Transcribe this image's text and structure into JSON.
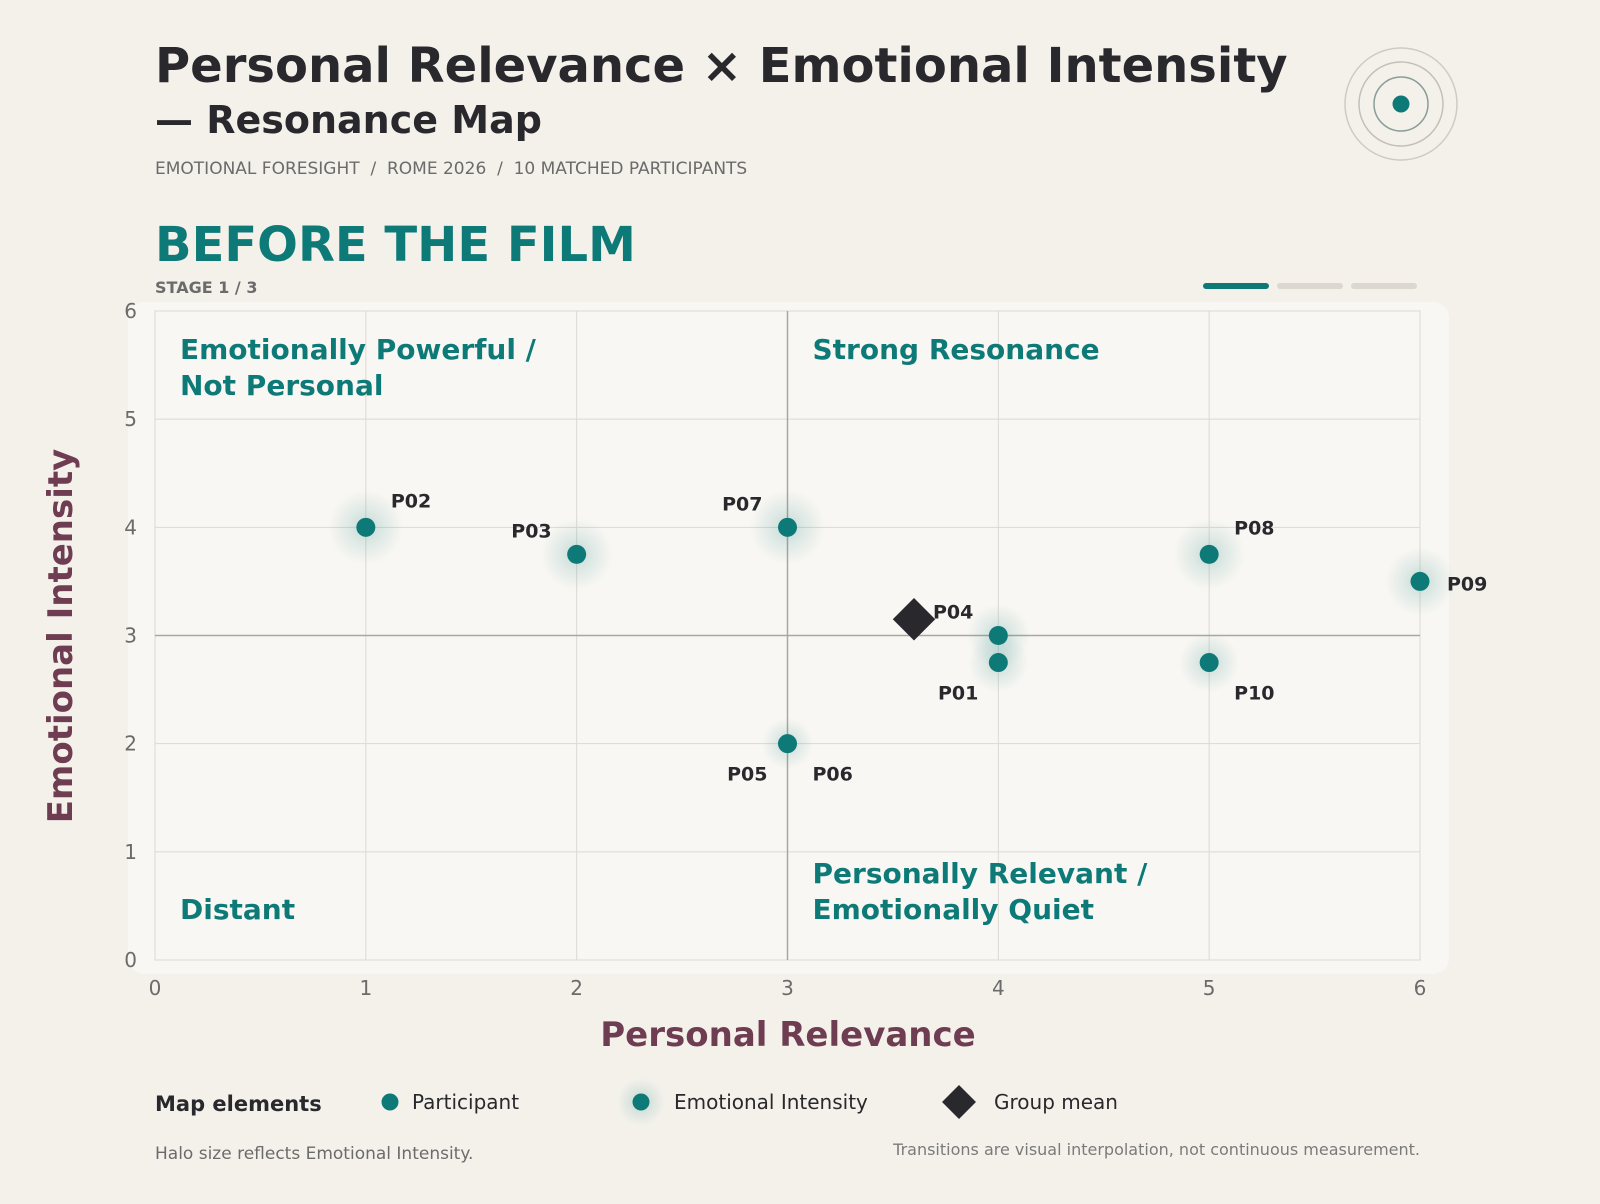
{
  "header": {
    "title_line1": "Personal Relevance × Emotional Intensity",
    "title_line2": "— Resonance Map",
    "subtitle": "EMOTIONAL FORESIGHT  /  ROME 2026  /  10 MATCHED PARTICIPANTS",
    "stage_title": "BEFORE THE FILM",
    "stage_label": "STAGE 1 / 3",
    "stage_current": 1,
    "stage_total": 3
  },
  "colors": {
    "teal": "#0e7a78",
    "axis_label": "#6e3d52",
    "ink": "#29282d",
    "muted": "#6b6b6b",
    "plot_bg": "#f9f7f3",
    "page_bg": "#f4f1eb",
    "inactive_stage": "#dcd7cf"
  },
  "chart_data": {
    "type": "scatter",
    "xlabel": "Personal Relevance",
    "ylabel": "Emotional Intensity",
    "xlim": [
      0,
      6
    ],
    "ylim": [
      0,
      6
    ],
    "xticks": [
      "0",
      "1",
      "2",
      "3",
      "4",
      "5",
      "6"
    ],
    "yticks": [
      "0",
      "1",
      "2",
      "3",
      "4",
      "5",
      "6"
    ],
    "divider_x": 3,
    "divider_y": 3,
    "grid": true,
    "quadrants": [
      {
        "position": "top-left",
        "lines": [
          "Emotionally Powerful /",
          "Not Personal"
        ]
      },
      {
        "position": "top-right",
        "lines": [
          "Strong Resonance"
        ]
      },
      {
        "position": "bottom-left",
        "lines": [
          "Distant"
        ]
      },
      {
        "position": "bottom-right",
        "lines": [
          "Personally Relevant /",
          "Emotionally Quiet"
        ]
      }
    ],
    "participants": [
      {
        "id": "P01",
        "x": 4,
        "y": 2.75,
        "label_side": "bottom-left"
      },
      {
        "id": "P02",
        "x": 1,
        "y": 4,
        "label_side": "top-right"
      },
      {
        "id": "P03",
        "x": 2,
        "y": 3.75,
        "label_side": "top-left"
      },
      {
        "id": "P04",
        "x": 4,
        "y": 3,
        "label_side": "top-left"
      },
      {
        "id": "P05",
        "x": 3,
        "y": 2,
        "label_side": "bottom-left"
      },
      {
        "id": "P06",
        "x": 3,
        "y": 2,
        "label_side": "bottom-right"
      },
      {
        "id": "P07",
        "x": 3,
        "y": 4,
        "label_side": "top-left"
      },
      {
        "id": "P08",
        "x": 5,
        "y": 3.75,
        "label_side": "top-right"
      },
      {
        "id": "P09",
        "x": 6,
        "y": 3.5,
        "label_side": "right"
      },
      {
        "id": "P10",
        "x": 5,
        "y": 2.75,
        "label_side": "bottom-right"
      }
    ],
    "group_mean": {
      "x": 3.6,
      "y": 3.15
    }
  },
  "legend": {
    "title": "Map elements",
    "items": [
      {
        "kind": "participant",
        "label": "Participant"
      },
      {
        "kind": "halo",
        "label": "Emotional Intensity"
      },
      {
        "kind": "mean",
        "label": "Group mean"
      }
    ]
  },
  "footer": {
    "halo_note": "Halo size reflects Emotional Intensity.",
    "transition_note": "Transitions are visual interpolation, not continuous measurement."
  }
}
